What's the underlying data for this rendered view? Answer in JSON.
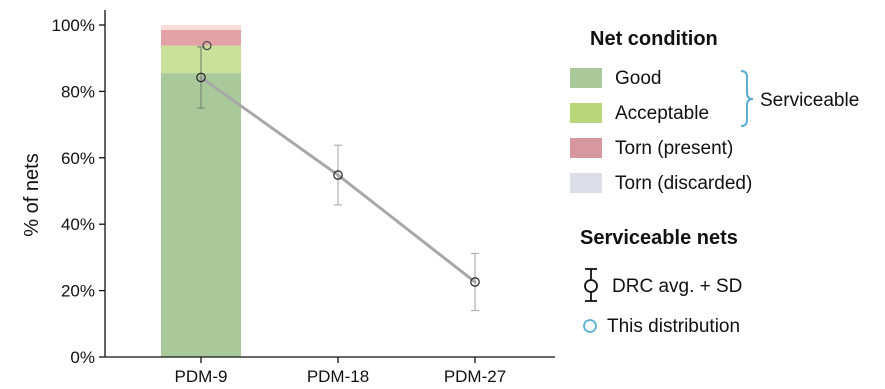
{
  "chart_data": {
    "type": "bar",
    "ylabel": "% of nets",
    "ylim": [
      0,
      100
    ],
    "yticks": [
      0,
      20,
      40,
      60,
      80,
      100
    ],
    "ytick_labels": [
      "0%",
      "20%",
      "40%",
      "60%",
      "80%",
      "100%"
    ],
    "categories": [
      "PDM-9",
      "PDM-18",
      "PDM-27"
    ],
    "stacked_bar": {
      "category": "PDM-9",
      "segments": [
        {
          "name": "Good",
          "value": 85.5,
          "color": "#a9c99b"
        },
        {
          "name": "Acceptable",
          "value": 8.3,
          "color": "#c9e19a"
        },
        {
          "name": "Torn (present)",
          "value": 4.7,
          "color": "#e2a2a6"
        },
        {
          "name": "Torn (discarded)",
          "value": 1.5,
          "color": "#f7ddd8"
        }
      ]
    },
    "drc_series": {
      "name": "DRC avg. + SD",
      "color": "#a8a8a8",
      "points": [
        {
          "x": "PDM-9",
          "mean": 84.2,
          "sd": 9.2
        },
        {
          "x": "PDM-18",
          "mean": 54.8,
          "sd": 9.0
        },
        {
          "x": "PDM-27",
          "mean": 22.6,
          "sd": 8.6
        }
      ]
    },
    "this_distribution": {
      "name": "This distribution",
      "points": [
        {
          "x": "PDM-9",
          "value": 93.8
        }
      ]
    },
    "legend": {
      "placement": "right",
      "title": "Net condition",
      "items": [
        {
          "label": "Good",
          "color": "#a9c99b"
        },
        {
          "label": "Acceptable",
          "color": "#b7d77a"
        },
        {
          "label": "Torn (present)",
          "color": "#d6979d"
        },
        {
          "label": "Torn (discarded)",
          "color": "#dcdde9"
        }
      ],
      "bracket_label": "Serviceable",
      "bracket_color": "#5aaed8",
      "section2_title": "Serviceable nets",
      "section2_items": [
        {
          "label": "DRC avg. + SD"
        },
        {
          "label": "This distribution",
          "color": "#5aaed8"
        }
      ]
    }
  }
}
